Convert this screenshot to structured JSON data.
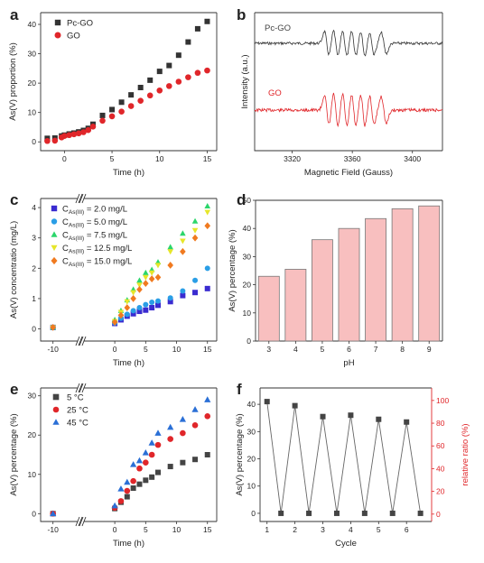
{
  "panels": [
    {
      "id": "a",
      "label": "a",
      "type": "scatter",
      "xlabel": "Time (h)",
      "ylabel": "As(V) proportion (%)",
      "xlim": [
        -2.5,
        16
      ],
      "ylim": [
        -3,
        44
      ],
      "xticks": [
        0,
        5,
        10,
        15
      ],
      "yticks": [
        0,
        10,
        20,
        30,
        40
      ],
      "legend_position": "top-left",
      "series": [
        {
          "name": "Pc-GO",
          "marker": "square",
          "color": "#333333",
          "x": [
            -1.8,
            -1,
            -0.3,
            0,
            0.5,
            1,
            1.5,
            2,
            2.5,
            3,
            4,
            5,
            6,
            7,
            8,
            9,
            10,
            11,
            12,
            13,
            14,
            15
          ],
          "y": [
            1.2,
            1.3,
            2.0,
            2.3,
            2.7,
            3.0,
            3.4,
            3.9,
            4.6,
            6.0,
            9.0,
            11.0,
            13.5,
            16.0,
            18.5,
            21.0,
            24.0,
            26.0,
            29.5,
            34.0,
            38.5,
            41.0
          ]
        },
        {
          "name": "GO",
          "marker": "circle",
          "color": "#e0262a",
          "x": [
            -1.8,
            -1,
            -0.3,
            0,
            0.5,
            1,
            1.5,
            2,
            2.5,
            3,
            4,
            5,
            6,
            7,
            8,
            9,
            10,
            11,
            12,
            13,
            14,
            15
          ],
          "y": [
            0.3,
            0.4,
            1.5,
            2.0,
            2.3,
            2.6,
            2.9,
            3.3,
            4.0,
            5.2,
            7.2,
            8.7,
            10.3,
            12.2,
            14.0,
            15.8,
            17.5,
            19.0,
            20.5,
            22.0,
            23.5,
            24.3
          ]
        }
      ]
    },
    {
      "id": "b",
      "label": "b",
      "type": "line",
      "xlabel": "Magnetic Field (Gauss)",
      "ylabel": "Intensity (a.u.)",
      "xlim": [
        3295,
        3420
      ],
      "xticks": [
        3320,
        3360,
        3400
      ],
      "series": [
        {
          "name": "Pc-GO",
          "color": "#333333"
        },
        {
          "name": "GO",
          "color": "#e0262a"
        }
      ]
    },
    {
      "id": "c",
      "label": "c",
      "type": "scatter",
      "xlabel": "Time (h)",
      "ylabel": "As(V) concentratio (mg/L)",
      "xlim": [
        -12,
        16.5
      ],
      "ylim": [
        -0.4,
        4.3
      ],
      "axis_break": true,
      "xticks": [
        -10,
        0,
        5,
        10,
        15
      ],
      "yticks": [
        0,
        1,
        2,
        3,
        4
      ],
      "legend_position": "top-left",
      "x": [
        -10,
        0,
        1,
        2,
        3,
        4,
        5,
        6,
        7,
        9,
        11,
        13,
        15
      ],
      "series": [
        {
          "name_main": "C",
          "name_sub": "As(III)",
          "name_rest": " = 2.0 mg/L",
          "marker": "square",
          "color": "#3a2bd0",
          "y": [
            0.05,
            0.18,
            0.3,
            0.42,
            0.5,
            0.58,
            0.62,
            0.7,
            0.78,
            0.9,
            1.1,
            1.2,
            1.33
          ]
        },
        {
          "name_main": "C",
          "name_sub": "As(III)",
          "name_rest": " = 5.0 mg/L",
          "marker": "circle",
          "color": "#2a9ee6",
          "y": [
            0.05,
            0.2,
            0.35,
            0.48,
            0.6,
            0.7,
            0.8,
            0.88,
            0.92,
            1.02,
            1.25,
            1.6,
            2.0
          ]
        },
        {
          "name_main": "C",
          "name_sub": "As(III)",
          "name_rest": " = 7.5 mg/L",
          "marker": "triangle-up",
          "color": "#2bd66b",
          "y": [
            0.05,
            0.3,
            0.6,
            0.95,
            1.3,
            1.6,
            1.85,
            1.95,
            2.2,
            2.7,
            3.15,
            3.55,
            4.05
          ]
        },
        {
          "name_main": "C",
          "name_sub": "As(III)",
          "name_rest": " = 12.5 mg/L",
          "marker": "triangle-down",
          "color": "#e6e62a",
          "y": [
            0.05,
            0.25,
            0.55,
            0.9,
            1.2,
            1.45,
            1.7,
            1.85,
            2.1,
            2.55,
            2.9,
            3.25,
            3.85
          ]
        },
        {
          "name_main": "C",
          "name_sub": "As(III)",
          "name_rest": " = 15.0 mg/L",
          "marker": "diamond",
          "color": "#f07a20",
          "y": [
            0.05,
            0.22,
            0.45,
            0.7,
            1.0,
            1.3,
            1.5,
            1.65,
            1.7,
            2.1,
            2.55,
            3.0,
            3.4
          ]
        }
      ]
    },
    {
      "id": "d",
      "label": "d",
      "type": "bar",
      "xlabel": "pH",
      "ylabel": "As(V) percentage (%)",
      "categories": [
        "3",
        "4",
        "5",
        "6",
        "7",
        "8",
        "9"
      ],
      "values": [
        23,
        25.5,
        36,
        40,
        43.5,
        47,
        48
      ],
      "ylim": [
        0,
        50
      ],
      "yticks": [
        0,
        10,
        20,
        30,
        40,
        50
      ],
      "bar_color": "#f8bfbf",
      "edge_color": "#777777"
    },
    {
      "id": "e",
      "label": "e",
      "type": "scatter",
      "xlabel": "Time (h)",
      "ylabel": "As(V) percentage (%)",
      "xlim": [
        -12,
        16.5
      ],
      "ylim": [
        -2,
        32
      ],
      "axis_break": true,
      "xticks": [
        -10,
        0,
        5,
        10,
        15
      ],
      "yticks": [
        0,
        10,
        20,
        30
      ],
      "legend_position": "top-left",
      "x": [
        -10,
        0,
        1,
        2,
        3,
        4,
        5,
        6,
        7,
        9,
        11,
        13,
        15
      ],
      "series": [
        {
          "name": "5 °C",
          "marker": "square",
          "color": "#444444",
          "y": [
            0,
            1.3,
            2.9,
            4.3,
            6.5,
            7.5,
            8.5,
            9.3,
            10.5,
            12.0,
            13.0,
            13.8,
            15.0
          ]
        },
        {
          "name": "25 °C",
          "marker": "circle",
          "color": "#e0262a",
          "y": [
            0,
            1.5,
            3.2,
            5.8,
            8.3,
            11.5,
            13.0,
            15.0,
            17.5,
            19.0,
            20.5,
            22.5,
            24.8
          ]
        },
        {
          "name": "45 °C",
          "marker": "triangle-up",
          "color": "#2a6fd6",
          "y": [
            0,
            2.0,
            6.3,
            8.0,
            12.5,
            13.5,
            15.5,
            18.0,
            20.5,
            22.0,
            24.0,
            26.5,
            29.0
          ]
        }
      ]
    },
    {
      "id": "f",
      "label": "f",
      "type": "line",
      "xlabel": "Cycle",
      "ylabel": "As(V) percentage (%)",
      "ylabel_right": "relative ratio (%)",
      "xlim": [
        0.75,
        6.9
      ],
      "ylim": [
        -3,
        46
      ],
      "ylim_right": [
        -6.5,
        111
      ],
      "xticks": [
        1,
        2,
        3,
        4,
        5,
        6
      ],
      "yticks": [
        0,
        10,
        20,
        30,
        40
      ],
      "yticks_right": [
        0,
        20,
        40,
        60,
        80,
        100
      ],
      "series": [
        {
          "marker": "square",
          "color": "#444444",
          "x": [
            1,
            1.5,
            2,
            2.5,
            3,
            3.5,
            4,
            4.5,
            5,
            5.5,
            6,
            6.5
          ],
          "y": [
            41,
            0,
            39.5,
            0,
            35.5,
            0,
            36,
            0,
            34.5,
            0,
            33.5,
            0
          ]
        }
      ]
    }
  ],
  "colors": {
    "ink": "#333333",
    "red": "#e0262a",
    "right_axis": "#e0262a"
  }
}
